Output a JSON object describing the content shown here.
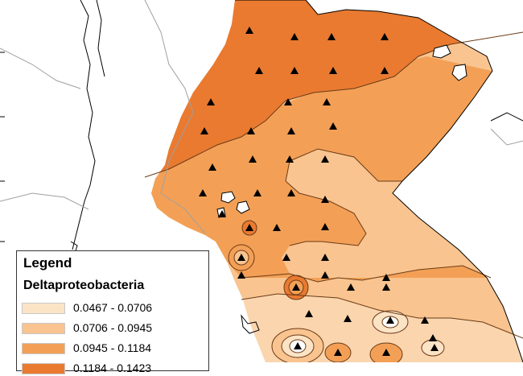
{
  "legend": {
    "title": "Legend",
    "subtitle": "Deltaproteobacteria",
    "classes": [
      {
        "label": "0.0467 - 0.0706",
        "color": "#fbe3c6"
      },
      {
        "label": "0.0706 - 0.0945",
        "color": "#f9c48f"
      },
      {
        "label": "0.0945 - 0.1184",
        "color": "#f3a056"
      },
      {
        "label": "0.1184 - 0.1423",
        "color": "#e97a30"
      }
    ]
  },
  "map": {
    "background_color": "#ffffff",
    "coastline_color": "#000000",
    "border_color": "#a0a0a0",
    "sample_marker": "triangle-icon"
  }
}
